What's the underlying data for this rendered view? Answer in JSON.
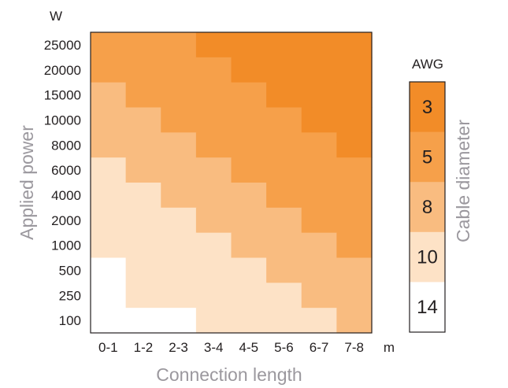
{
  "chart_data": {
    "type": "heatmap",
    "xlabel": "Connection length",
    "ylabel": "Applied power",
    "x_unit": "m",
    "y_unit": "W",
    "x_categories": [
      "0-1",
      "1-2",
      "2-3",
      "3-4",
      "4-5",
      "5-6",
      "6-7",
      "7-8"
    ],
    "y_categories": [
      "25000",
      "20000",
      "15000",
      "10000",
      "8000",
      "6000",
      "4000",
      "2000",
      "1000",
      "500",
      "250",
      "100"
    ],
    "values": [
      [
        "5",
        "5",
        "5",
        "3",
        "3",
        "3",
        "3",
        "3"
      ],
      [
        "5",
        "5",
        "5",
        "5",
        "3",
        "3",
        "3",
        "3"
      ],
      [
        "8",
        "5",
        "5",
        "5",
        "5",
        "3",
        "3",
        "3"
      ],
      [
        "8",
        "8",
        "5",
        "5",
        "5",
        "5",
        "3",
        "3"
      ],
      [
        "8",
        "8",
        "8",
        "5",
        "5",
        "5",
        "5",
        "3"
      ],
      [
        "10",
        "8",
        "8",
        "8",
        "5",
        "5",
        "5",
        "5"
      ],
      [
        "10",
        "10",
        "8",
        "8",
        "8",
        "5",
        "5",
        "5"
      ],
      [
        "10",
        "10",
        "10",
        "8",
        "8",
        "8",
        "5",
        "5"
      ],
      [
        "10",
        "10",
        "10",
        "10",
        "8",
        "8",
        "8",
        "5"
      ],
      [
        "14",
        "10",
        "10",
        "10",
        "10",
        "8",
        "8",
        "8"
      ],
      [
        "14",
        "10",
        "10",
        "10",
        "10",
        "10",
        "8",
        "8"
      ],
      [
        "14",
        "14",
        "14",
        "10",
        "10",
        "10",
        "10",
        "8"
      ]
    ],
    "legend": {
      "title": "AWG",
      "side_label": "Cable diameter",
      "levels": [
        "3",
        "5",
        "8",
        "10",
        "14"
      ]
    },
    "colors": {
      "3": "#f28c28",
      "5": "#f6a04a",
      "8": "#f9bc80",
      "10": "#fde2c6",
      "14": "#ffffff"
    }
  }
}
